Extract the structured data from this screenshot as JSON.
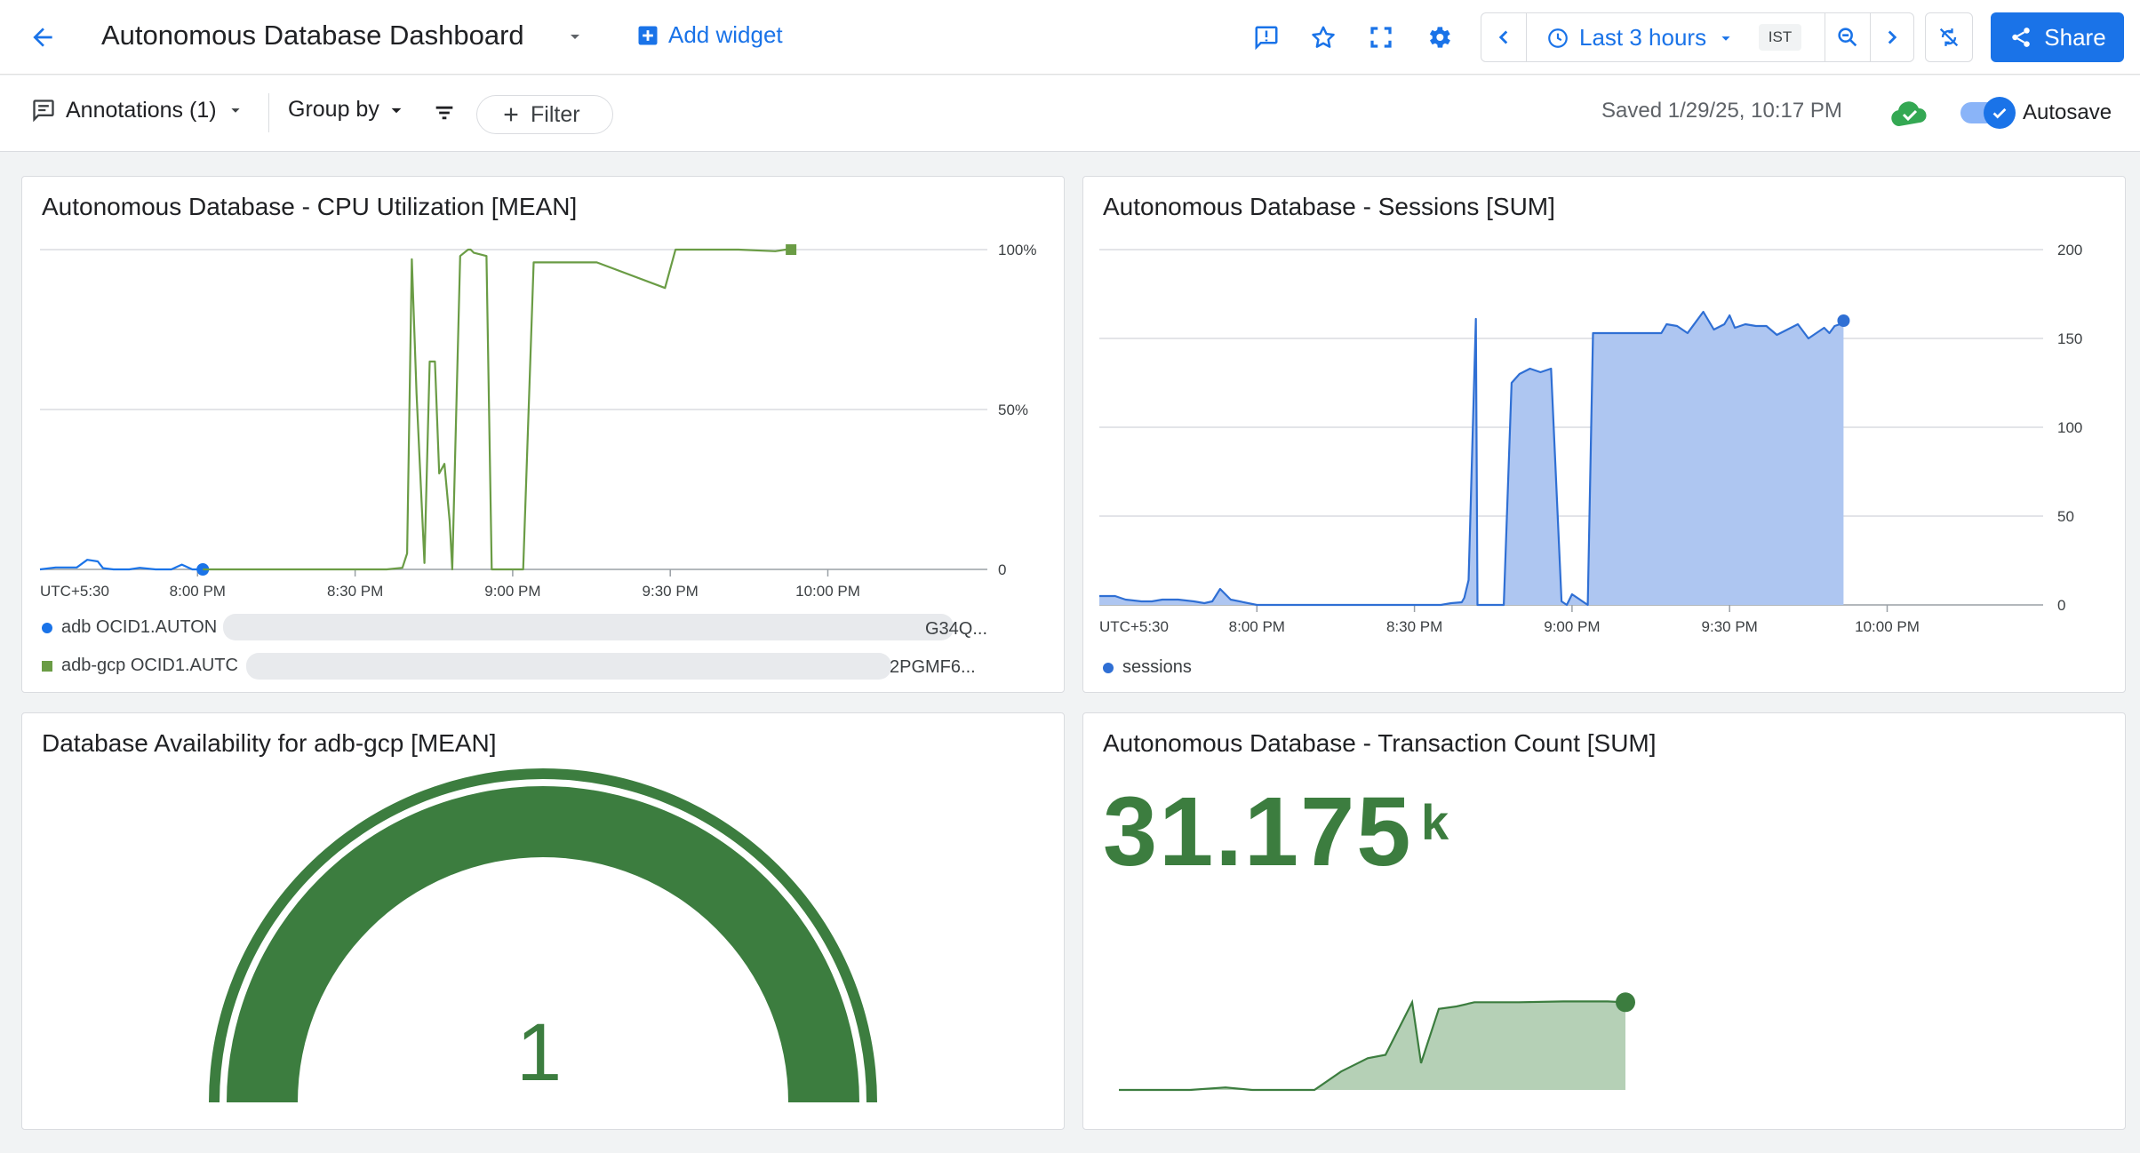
{
  "header": {
    "title": "Autonomous Database Dashboard",
    "add_widget": "Add widget",
    "time_range": "Last 3 hours",
    "timezone": "IST",
    "share": "Share"
  },
  "toolbar": {
    "annotations": "Annotations (1)",
    "group_by": "Group by",
    "filter": "Filter",
    "saved": "Saved 1/29/25, 10:17 PM",
    "autosave": "Autosave"
  },
  "icons": [
    "back-arrow-icon",
    "dropdown-arrow-icon",
    "add-box-icon",
    "feedback-icon",
    "star-icon",
    "fullscreen-icon",
    "gear-icon",
    "chevron-left-icon",
    "clock-icon",
    "zoom-out-icon",
    "chevron-right-icon",
    "sync-off-icon",
    "share-icon",
    "notes-icon",
    "filter-lines-icon",
    "plus-icon",
    "cloud-check-icon",
    "check-icon"
  ],
  "colors": {
    "accent": "#1a73e8",
    "green": "#3c7d3f",
    "cpu_series": "#6a9c45",
    "sessions_fill": "#aec6f1",
    "cloud_green": "#34a853"
  },
  "widgets": {
    "cpu": {
      "title": "Autonomous Database - CPU Utilization [MEAN]",
      "legend": [
        {
          "prefix": "adb OCID1.AUTON",
          "suffix": "G34Q..."
        },
        {
          "prefix": "adb-gcp OCID1.AUTC",
          "suffix": "2PGMF6..."
        }
      ]
    },
    "sessions": {
      "title": "Autonomous Database - Sessions [SUM]",
      "legend": "sessions"
    },
    "availability": {
      "title": "Database Availability for adb-gcp [MEAN]",
      "value": "1"
    },
    "transactions": {
      "title": "Autonomous Database - Transaction Count [SUM]",
      "value": "31.175",
      "unit": "k"
    }
  },
  "chart_data": [
    {
      "type": "line",
      "title": "Autonomous Database - CPU Utilization [MEAN]",
      "x_ticks": [
        "UTC+5:30",
        "8:00 PM",
        "8:30 PM",
        "9:00 PM",
        "9:30 PM",
        "10:00 PM"
      ],
      "y_ticks": [
        "0",
        "50%",
        "100%"
      ],
      "ylim": [
        0,
        100
      ],
      "x_unit": "minutes after 7:30 PM (IST)",
      "series": [
        {
          "name": "adb OCID1.AUTON…G34Q...",
          "color": "#1a73e8",
          "x": [
            0,
            3,
            7,
            9,
            11,
            12,
            14,
            17,
            19,
            22,
            25,
            27,
            29,
            31
          ],
          "y": [
            0,
            0.6,
            0.6,
            3,
            2.5,
            0.4,
            0,
            0,
            0.5,
            0,
            0,
            1.5,
            0,
            0
          ]
        },
        {
          "name": "adb-gcp OCID1.AUTC…2PGMF6...",
          "color": "#6a9c45",
          "x": [
            31,
            40,
            50,
            60,
            66,
            69,
            69.9,
            70.8,
            71.7,
            73.2,
            74.2,
            75.2,
            76,
            77,
            78,
            78.5,
            80,
            81.5,
            82,
            82.6,
            85,
            86,
            86.9,
            92,
            94,
            95,
            106,
            119,
            121,
            123,
            133,
            140,
            142,
            143
          ],
          "y": [
            0,
            0,
            0,
            0,
            0,
            0.5,
            5,
            97,
            55,
            2,
            65,
            65,
            30,
            33,
            15,
            0,
            98,
            100,
            100,
            99,
            98,
            0,
            0,
            0,
            96,
            96,
            96,
            88,
            100,
            100,
            100,
            99.5,
            100,
            100
          ]
        }
      ]
    },
    {
      "type": "area",
      "title": "Autonomous Database - Sessions [SUM]",
      "x_ticks": [
        "UTC+5:30",
        "8:00 PM",
        "8:30 PM",
        "9:00 PM",
        "9:30 PM",
        "10:00 PM"
      ],
      "y_ticks": [
        "0",
        "50",
        "100",
        "150",
        "200"
      ],
      "ylim": [
        0,
        200
      ],
      "x_unit": "minutes after 7:30 PM (IST)",
      "series": [
        {
          "name": "sessions",
          "color": "#2f6fd4",
          "x": [
            0,
            3,
            5,
            8,
            10,
            12,
            15,
            18,
            20,
            21.5,
            23,
            25,
            30,
            40,
            45,
            50,
            55,
            60,
            65,
            67,
            69,
            69.5,
            70.3,
            71.7,
            72,
            77,
            78.5,
            80,
            82,
            84,
            86,
            88,
            89,
            90,
            93,
            94,
            95,
            96,
            97,
            98,
            98.7,
            100,
            101,
            102,
            104,
            105,
            107,
            108,
            110,
            112,
            115,
            117,
            119,
            120,
            121,
            123,
            125,
            127,
            129,
            131,
            133,
            135,
            138,
            139,
            140,
            141,
            141.7
          ],
          "y": [
            5,
            5,
            3,
            2,
            2,
            3,
            3,
            2,
            1,
            2,
            9,
            3,
            0,
            0,
            0,
            0,
            0,
            0,
            0,
            1,
            1.5,
            4,
            14,
            161,
            0,
            0,
            125,
            130,
            133,
            131,
            133,
            2,
            0,
            6,
            0,
            153,
            153,
            153,
            153,
            153,
            153,
            153,
            153,
            153,
            153,
            153,
            153,
            158,
            157,
            153,
            165,
            155,
            158,
            163,
            156,
            158,
            157,
            157,
            152,
            155,
            158,
            150,
            156,
            153,
            157,
            158,
            160
          ]
        }
      ]
    },
    {
      "type": "gauge",
      "title": "Database Availability for adb-gcp [MEAN]",
      "value": 1,
      "max": 1
    },
    {
      "type": "area",
      "title": "Autonomous Database - Transaction Count [SUM]",
      "value": 31.175,
      "unit": "k",
      "x": [
        0,
        5,
        8,
        12,
        15,
        20,
        22,
        25,
        28,
        30,
        33,
        34,
        36,
        38,
        40,
        45,
        50,
        55,
        57
      ],
      "y": [
        0,
        0,
        0,
        0.3,
        0,
        0,
        0,
        2.2,
        3.8,
        4.2,
        10.5,
        3.2,
        9.7,
        10,
        10.5,
        10.5,
        10.6,
        10.6,
        10.5
      ]
    }
  ]
}
